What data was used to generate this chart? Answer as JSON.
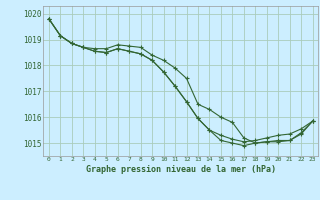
{
  "title": "Graphe pression niveau de la mer (hPa)",
  "background_color": "#cceeff",
  "grid_color": "#aaccbb",
  "line_color": "#336633",
  "marker_color": "#336633",
  "xlim": [
    -0.5,
    23.5
  ],
  "ylim": [
    1014.5,
    1020.3
  ],
  "yticks": [
    1015,
    1016,
    1017,
    1018,
    1019,
    1020
  ],
  "xticks": [
    0,
    1,
    2,
    3,
    4,
    5,
    6,
    7,
    8,
    9,
    10,
    11,
    12,
    13,
    14,
    15,
    16,
    17,
    18,
    19,
    20,
    21,
    22,
    23
  ],
  "series": [
    [
      1019.8,
      1019.15,
      1018.85,
      1018.7,
      1018.65,
      1018.65,
      1018.8,
      1018.75,
      1018.7,
      1018.4,
      1018.2,
      1017.9,
      1017.5,
      1016.5,
      1016.3,
      1016.0,
      1015.8,
      1015.2,
      1015.0,
      1015.05,
      1015.05,
      1015.1,
      1015.35,
      1015.85
    ],
    [
      1019.8,
      1019.15,
      1018.85,
      1018.7,
      1018.55,
      1018.5,
      1018.65,
      1018.55,
      1018.45,
      1018.2,
      1017.75,
      1017.2,
      1016.6,
      1015.95,
      1015.5,
      1015.1,
      1015.0,
      1014.9,
      1015.0,
      1015.05,
      1015.1,
      1015.1,
      1015.4,
      1015.85
    ],
    [
      1019.8,
      1019.15,
      1018.85,
      1018.7,
      1018.55,
      1018.5,
      1018.65,
      1018.55,
      1018.45,
      1018.2,
      1017.75,
      1017.2,
      1016.6,
      1015.95,
      1015.5,
      1015.3,
      1015.15,
      1015.05,
      1015.1,
      1015.2,
      1015.3,
      1015.35,
      1015.55,
      1015.85
    ]
  ]
}
